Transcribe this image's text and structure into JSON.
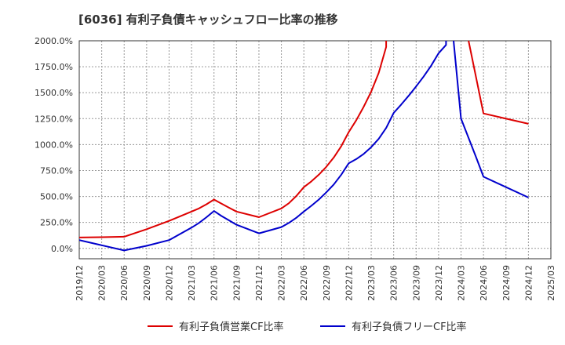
{
  "chart_data": {
    "type": "line",
    "title": "[6036]  有利子負債キャッシュフロー比率の推移",
    "ylim": [
      -100,
      2000
    ],
    "yticks": [
      0,
      250,
      500,
      750,
      1000,
      1250,
      1500,
      1750,
      2000
    ],
    "ytick_labels": [
      "0.0%",
      "250.0%",
      "500.0%",
      "750.0%",
      "1000.0%",
      "1250.0%",
      "1500.0%",
      "1750.0%",
      "2000.0%"
    ],
    "x_ticks": [
      "2019/12",
      "2020/03",
      "2020/06",
      "2020/09",
      "2020/12",
      "2021/03",
      "2021/06",
      "2021/09",
      "2021/12",
      "2022/03",
      "2022/06",
      "2022/09",
      "2022/12",
      "2023/03",
      "2023/06",
      "2023/09",
      "2023/12",
      "2024/03",
      "2024/06",
      "2024/09",
      "2024/12",
      "2025/03"
    ],
    "grid": true,
    "legend_position": "bottom",
    "series": [
      {
        "name": "有利子負債営業CF比率",
        "color": "#dd0000",
        "points": [
          [
            "2019/12",
            105
          ],
          [
            "2020/03",
            108
          ],
          [
            "2020/06",
            112
          ],
          [
            "2020/09",
            185
          ],
          [
            "2020/12",
            265
          ],
          [
            "2021/03",
            355
          ],
          [
            "2021/04",
            385
          ],
          [
            "2021/05",
            425
          ],
          [
            "2021/06",
            470
          ],
          [
            "2021/07",
            430
          ],
          [
            "2021/08",
            392
          ],
          [
            "2021/09",
            355
          ],
          [
            "2021/12",
            300
          ],
          [
            "2022/03",
            385
          ],
          [
            "2022/04",
            435
          ],
          [
            "2022/05",
            505
          ],
          [
            "2022/06",
            590
          ],
          [
            "2022/07",
            645
          ],
          [
            "2022/08",
            710
          ],
          [
            "2022/09",
            785
          ],
          [
            "2022/10",
            875
          ],
          [
            "2022/11",
            985
          ],
          [
            "2022/12",
            1120
          ],
          [
            "2023/01",
            1235
          ],
          [
            "2023/02",
            1365
          ],
          [
            "2023/03",
            1510
          ],
          [
            "2023/04",
            1690
          ],
          [
            "2023/05",
            1940
          ],
          [
            "2023/05",
            2000
          ]
        ],
        "points_after_gap": [
          [
            "2024/04",
            2000
          ],
          [
            "2024/05",
            1650
          ],
          [
            "2024/06",
            1300
          ],
          [
            "2024/12",
            1200
          ]
        ]
      },
      {
        "name": "有利子負債フリーCF比率",
        "color": "#0000cc",
        "points": [
          [
            "2019/12",
            80
          ],
          [
            "2020/03",
            30
          ],
          [
            "2020/06",
            -20
          ],
          [
            "2020/09",
            25
          ],
          [
            "2020/12",
            80
          ],
          [
            "2021/03",
            200
          ],
          [
            "2021/04",
            245
          ],
          [
            "2021/05",
            300
          ],
          [
            "2021/06",
            360
          ],
          [
            "2021/07",
            312
          ],
          [
            "2021/08",
            270
          ],
          [
            "2021/09",
            228
          ],
          [
            "2021/12",
            145
          ],
          [
            "2022/03",
            205
          ],
          [
            "2022/04",
            245
          ],
          [
            "2022/05",
            295
          ],
          [
            "2022/06",
            355
          ],
          [
            "2022/07",
            410
          ],
          [
            "2022/08",
            470
          ],
          [
            "2022/09",
            540
          ],
          [
            "2022/10",
            615
          ],
          [
            "2022/11",
            710
          ],
          [
            "2022/12",
            820
          ],
          [
            "2023/01",
            860
          ],
          [
            "2023/02",
            910
          ],
          [
            "2023/03",
            975
          ],
          [
            "2023/04",
            1055
          ],
          [
            "2023/05",
            1160
          ],
          [
            "2023/06",
            1305
          ],
          [
            "2023/07",
            1385
          ],
          [
            "2023/08",
            1470
          ],
          [
            "2023/09",
            1560
          ],
          [
            "2023/10",
            1655
          ],
          [
            "2023/11",
            1760
          ],
          [
            "2023/12",
            1880
          ],
          [
            "2024/01",
            1960
          ],
          [
            "2024/01",
            2000
          ]
        ],
        "points_after_gap": [
          [
            "2024/02",
            2000
          ],
          [
            "2024/03",
            1250
          ],
          [
            "2024/05",
            880
          ],
          [
            "2024/06",
            690
          ],
          [
            "2024/12",
            490
          ]
        ]
      }
    ]
  }
}
